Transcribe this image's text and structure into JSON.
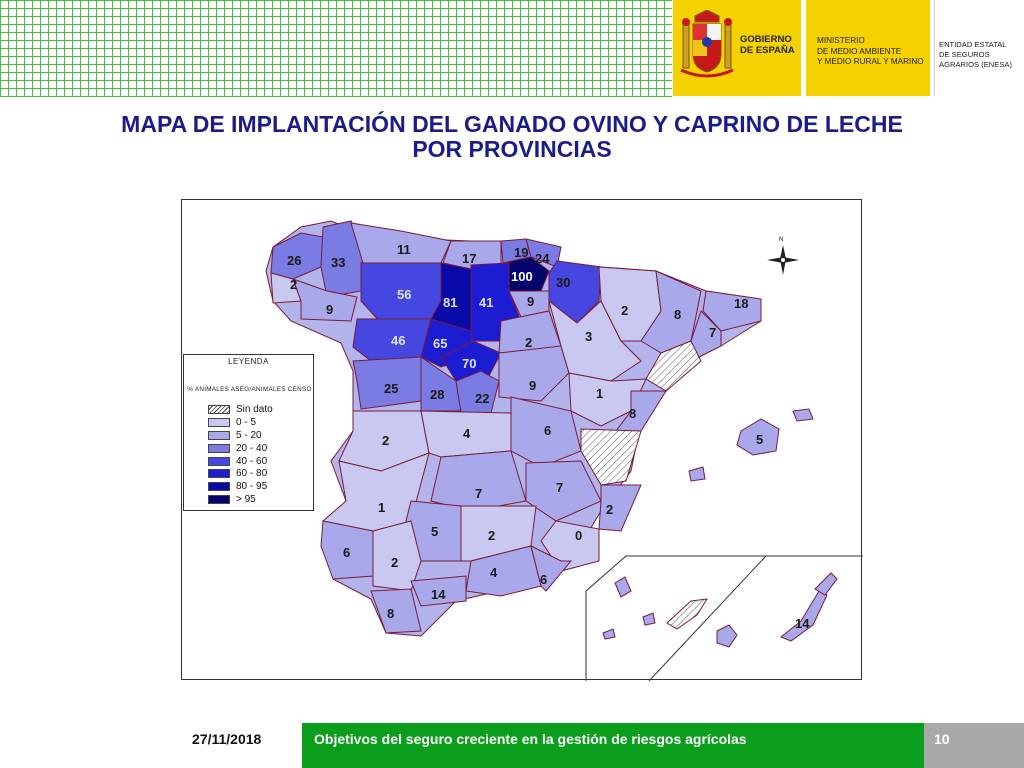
{
  "header": {
    "gov_label": "GOBIERNO\nDE ESPAÑA",
    "ministry_label": "MINISTERIO\nDE MEDIO AMBIENTE\nY MEDIO RURAL Y MARINO",
    "enesa_label": "ENTIDAD ESTATAL\nDE SEGUROS\nAGRARIOS (ENESA)"
  },
  "title": "MAPA DE IMPLANTACIÓN  DEL GANADO OVINO Y CAPRINO DE LECHE\nPOR PROVINCIAS",
  "legend": {
    "title": "LEYENDA",
    "subtitle": "% ANIMALES ASEG/ANIMALES CENSO",
    "items": [
      {
        "label": "Sin dato",
        "color": "hatch"
      },
      {
        "label": "0 - 5",
        "color": "#c8c8f0"
      },
      {
        "label": "5 - 20",
        "color": "#a8a8ea"
      },
      {
        "label": "20 - 40",
        "color": "#7b7be4"
      },
      {
        "label": "40 - 60",
        "color": "#4646e0"
      },
      {
        "label": "60 - 80",
        "color": "#1c1cd2"
      },
      {
        "label": "80 - 95",
        "color": "#0a0aa8"
      },
      {
        "label": "> 95",
        "color": "#04046a"
      }
    ]
  },
  "compass_label": "N",
  "provinces": [
    {
      "name": "A Coruña",
      "value": "26"
    },
    {
      "name": "Lugo",
      "value": "33"
    },
    {
      "name": "Pontevedra",
      "value": "2"
    },
    {
      "name": "Ourense",
      "value": "9"
    },
    {
      "name": "Asturias",
      "value": "11"
    },
    {
      "name": "Cantabria",
      "value": "17"
    },
    {
      "name": "Bizkaia",
      "value": "19"
    },
    {
      "name": "Gipuzkoa",
      "value": "24"
    },
    {
      "name": "Álava",
      "value": "100"
    },
    {
      "name": "Navarra",
      "value": "30"
    },
    {
      "name": "León",
      "value": "56"
    },
    {
      "name": "Palencia",
      "value": "81"
    },
    {
      "name": "Burgos",
      "value": "41"
    },
    {
      "name": "La Rioja",
      "value": "9"
    },
    {
      "name": "Huesca",
      "value": "2"
    },
    {
      "name": "Lleida",
      "value": "8"
    },
    {
      "name": "Girona",
      "value": "18"
    },
    {
      "name": "Barcelona",
      "value": "7"
    },
    {
      "name": "Zamora",
      "value": "46"
    },
    {
      "name": "Valladolid",
      "value": "65"
    },
    {
      "name": "Soria",
      "value": "2"
    },
    {
      "name": "Zaragoza",
      "value": "3"
    },
    {
      "name": "Segovia",
      "value": "70"
    },
    {
      "name": "Salamanca",
      "value": "25"
    },
    {
      "name": "Ávila",
      "value": "28"
    },
    {
      "name": "Madrid",
      "value": "22"
    },
    {
      "name": "Guadalajara",
      "value": "9"
    },
    {
      "name": "Teruel",
      "value": "1"
    },
    {
      "name": "Castellón",
      "value": "8"
    },
    {
      "name": "Cáceres",
      "value": "2"
    },
    {
      "name": "Toledo",
      "value": "4"
    },
    {
      "name": "Cuenca",
      "value": "6"
    },
    {
      "name": "Baleares",
      "value": "5"
    },
    {
      "name": "Badajoz",
      "value": "1"
    },
    {
      "name": "Ciudad Real",
      "value": "7"
    },
    {
      "name": "Albacete",
      "value": "7"
    },
    {
      "name": "Alicante",
      "value": "2"
    },
    {
      "name": "Córdoba",
      "value": "5"
    },
    {
      "name": "Jaén",
      "value": "2"
    },
    {
      "name": "Murcia",
      "value": "0"
    },
    {
      "name": "Huelva",
      "value": "6"
    },
    {
      "name": "Sevilla",
      "value": "2"
    },
    {
      "name": "Granada",
      "value": "4"
    },
    {
      "name": "Almería",
      "value": "6"
    },
    {
      "name": "Málaga",
      "value": "14"
    },
    {
      "name": "Cádiz",
      "value": "8"
    },
    {
      "name": "Las Palmas",
      "value": "14"
    }
  ],
  "footer": {
    "date": "27/11/2018",
    "caption": "Objetivos del seguro creciente en la gestión de riesgos agrícolas",
    "page": "10"
  }
}
